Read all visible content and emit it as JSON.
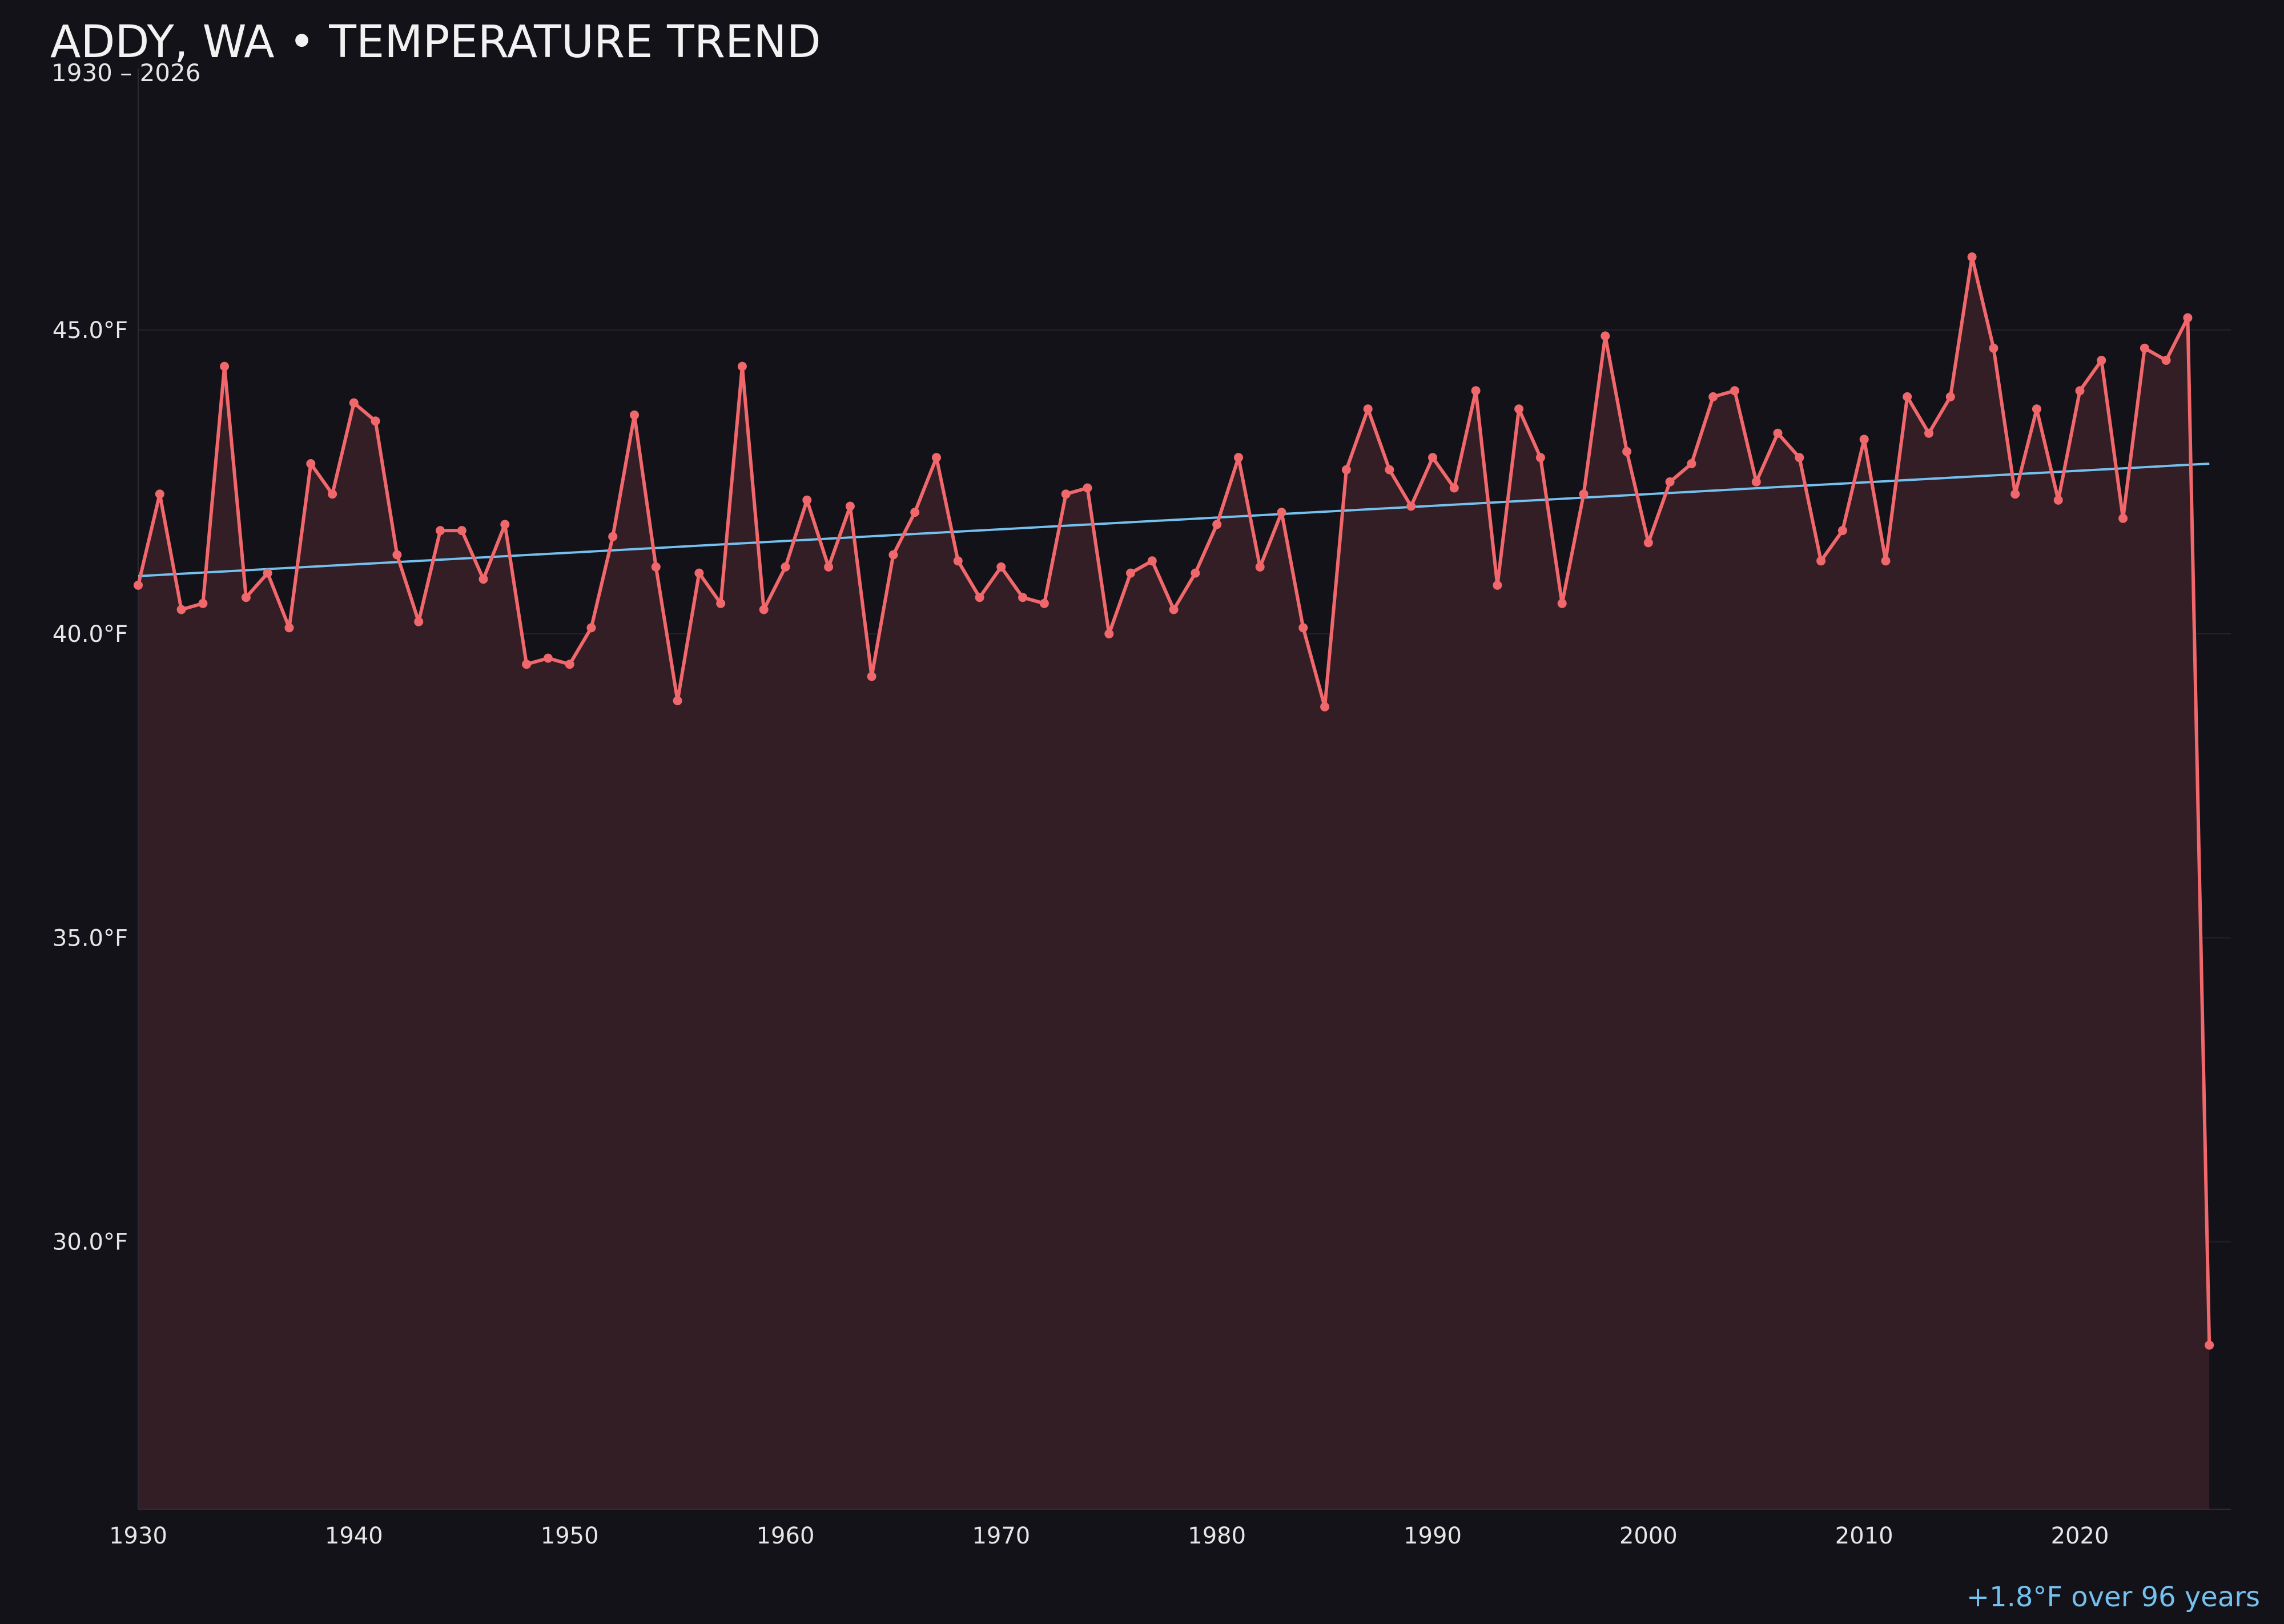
{
  "chart_data": {
    "type": "line",
    "title": "ADDY, WA • TEMPERATURE TREND",
    "subtitle": "1930 – 2026",
    "xlabel": "",
    "ylabel": "",
    "xlim": [
      1930,
      2027
    ],
    "ylim": [
      25.6,
      49.3
    ],
    "yticks": [
      30.0,
      35.0,
      40.0,
      45.0
    ],
    "ytick_labels": [
      "30.0°F",
      "35.0°F",
      "40.0°F",
      "45.0°F"
    ],
    "xticks": [
      1930,
      1940,
      1950,
      1960,
      1970,
      1980,
      1990,
      2000,
      2010,
      2020
    ],
    "xtick_labels": [
      "1930",
      "1940",
      "1950",
      "1960",
      "1970",
      "1980",
      "1990",
      "2000",
      "2010",
      "2020"
    ],
    "grid": true,
    "x": [
      1930,
      1931,
      1932,
      1933,
      1934,
      1935,
      1936,
      1937,
      1938,
      1939,
      1940,
      1941,
      1942,
      1943,
      1944,
      1945,
      1946,
      1947,
      1948,
      1949,
      1950,
      1951,
      1952,
      1953,
      1954,
      1955,
      1956,
      1957,
      1958,
      1959,
      1960,
      1961,
      1962,
      1963,
      1964,
      1965,
      1966,
      1967,
      1968,
      1969,
      1970,
      1971,
      1972,
      1973,
      1974,
      1975,
      1976,
      1977,
      1978,
      1979,
      1980,
      1981,
      1982,
      1983,
      1984,
      1985,
      1986,
      1987,
      1988,
      1989,
      1990,
      1991,
      1992,
      1993,
      1994,
      1995,
      1996,
      1997,
      1998,
      1999,
      2000,
      2001,
      2002,
      2003,
      2004,
      2005,
      2006,
      2007,
      2008,
      2009,
      2010,
      2011,
      2012,
      2013,
      2014,
      2015,
      2016,
      2017,
      2018,
      2019,
      2020,
      2021,
      2022,
      2023,
      2024,
      2025,
      2026
    ],
    "series": [
      {
        "values": [
          40.8,
          42.3,
          40.4,
          40.5,
          44.4,
          40.6,
          41.0,
          40.1,
          42.8,
          42.3,
          43.8,
          43.5,
          41.3,
          40.2,
          41.7,
          41.7,
          40.9,
          41.8,
          39.5,
          39.6,
          39.5,
          40.1,
          41.6,
          43.6,
          41.1,
          38.9,
          41.0,
          40.5,
          44.4,
          40.4,
          41.1,
          42.2,
          41.1,
          42.1,
          39.3,
          41.3,
          42.0,
          42.9,
          41.2,
          40.6,
          41.1,
          40.6,
          40.5,
          42.3,
          42.4,
          40.0,
          41.0,
          41.2,
          40.4,
          41.0,
          41.8,
          42.9,
          41.1,
          42.0,
          40.1,
          38.8,
          42.7,
          43.7,
          42.7,
          42.1,
          42.9,
          42.4,
          44.0,
          40.8,
          43.7,
          42.9,
          40.5,
          42.3,
          44.9,
          43.0,
          41.5,
          42.5,
          42.8,
          43.9,
          44.0,
          42.5,
          43.3,
          42.9,
          41.2,
          41.7,
          43.2,
          41.2,
          43.9,
          43.3,
          43.9,
          46.2,
          44.7,
          42.3,
          43.7,
          42.2,
          44.0,
          44.5,
          41.9,
          44.7,
          44.5,
          45.2,
          28.3
        ]
      }
    ],
    "trend": {
      "start": [
        1930,
        40.95
      ],
      "end": [
        2026,
        42.8
      ]
    },
    "annotation": "+1.8°F over 96 years",
    "colors": {
      "background": "#131218",
      "line": "#f0686c",
      "fill": "#341e25",
      "trend": "#74c0ee",
      "text": "#e6e6e6",
      "grid": "#24232a"
    }
  }
}
